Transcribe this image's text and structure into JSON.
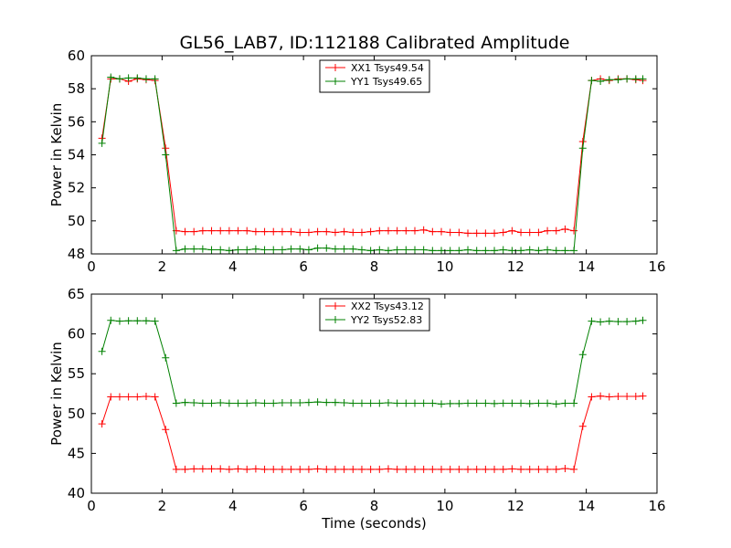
{
  "title": "GL56_LAB7, ID:112188 Calibrated Amplitude",
  "chart_data": [
    {
      "type": "line",
      "title": "GL56_LAB7, ID:112188 Calibrated Amplitude",
      "xlabel": "",
      "ylabel": "Power in Kelvin",
      "xlim": [
        0,
        16
      ],
      "ylim": [
        48,
        60
      ],
      "xticks": [
        0,
        2,
        4,
        6,
        8,
        10,
        12,
        14,
        16
      ],
      "yticks": [
        48,
        50,
        52,
        54,
        56,
        58,
        60
      ],
      "legend_position": "top-center",
      "grid": false,
      "x": [
        0.3,
        0.55,
        0.8,
        1.05,
        1.3,
        1.55,
        1.8,
        2.1,
        2.4,
        2.65,
        2.9,
        3.15,
        3.4,
        3.65,
        3.9,
        4.15,
        4.4,
        4.65,
        4.9,
        5.15,
        5.4,
        5.65,
        5.9,
        6.15,
        6.4,
        6.65,
        6.9,
        7.15,
        7.4,
        7.65,
        7.9,
        8.15,
        8.4,
        8.65,
        8.9,
        9.15,
        9.4,
        9.65,
        9.9,
        10.15,
        10.4,
        10.65,
        10.9,
        11.15,
        11.4,
        11.65,
        11.9,
        12.15,
        12.4,
        12.65,
        12.9,
        13.15,
        13.4,
        13.65,
        13.9,
        14.15,
        14.4,
        14.65,
        14.9,
        15.15,
        15.4,
        15.6
      ],
      "series": [
        {
          "name": "XX1 Tsys49.54",
          "color": "#ff0000",
          "values": [
            55.0,
            58.6,
            58.6,
            58.45,
            58.6,
            58.55,
            58.5,
            54.4,
            49.4,
            49.35,
            49.35,
            49.4,
            49.4,
            49.4,
            49.4,
            49.4,
            49.4,
            49.35,
            49.35,
            49.35,
            49.35,
            49.35,
            49.3,
            49.3,
            49.35,
            49.35,
            49.3,
            49.35,
            49.3,
            49.3,
            49.35,
            49.4,
            49.4,
            49.4,
            49.4,
            49.4,
            49.45,
            49.35,
            49.35,
            49.3,
            49.3,
            49.25,
            49.25,
            49.25,
            49.25,
            49.3,
            49.4,
            49.3,
            49.3,
            49.3,
            49.4,
            49.4,
            49.5,
            49.4,
            54.8,
            58.5,
            58.6,
            58.5,
            58.6,
            58.6,
            58.55,
            58.5
          ]
        },
        {
          "name": "YY1 Tsys49.65",
          "color": "#008000",
          "values": [
            54.7,
            58.7,
            58.6,
            58.65,
            58.65,
            58.6,
            58.6,
            54.0,
            48.2,
            48.3,
            48.3,
            48.3,
            48.25,
            48.25,
            48.2,
            48.25,
            48.25,
            48.3,
            48.25,
            48.25,
            48.25,
            48.3,
            48.3,
            48.25,
            48.35,
            48.35,
            48.3,
            48.3,
            48.3,
            48.25,
            48.2,
            48.25,
            48.2,
            48.25,
            48.25,
            48.25,
            48.25,
            48.2,
            48.2,
            48.2,
            48.2,
            48.25,
            48.2,
            48.2,
            48.2,
            48.25,
            48.2,
            48.2,
            48.25,
            48.2,
            48.25,
            48.2,
            48.2,
            48.2,
            54.4,
            58.5,
            58.45,
            58.55,
            58.55,
            58.6,
            58.6,
            58.6
          ]
        }
      ]
    },
    {
      "type": "line",
      "title": "",
      "xlabel": "Time (seconds)",
      "ylabel": "Power in Kelvin",
      "xlim": [
        0,
        16
      ],
      "ylim": [
        40,
        65
      ],
      "xticks": [
        0,
        2,
        4,
        6,
        8,
        10,
        12,
        14,
        16
      ],
      "yticks": [
        40,
        45,
        50,
        55,
        60,
        65
      ],
      "legend_position": "top-center",
      "grid": false,
      "x": [
        0.3,
        0.55,
        0.8,
        1.05,
        1.3,
        1.55,
        1.8,
        2.1,
        2.4,
        2.65,
        2.9,
        3.15,
        3.4,
        3.65,
        3.9,
        4.15,
        4.4,
        4.65,
        4.9,
        5.15,
        5.4,
        5.65,
        5.9,
        6.15,
        6.4,
        6.65,
        6.9,
        7.15,
        7.4,
        7.65,
        7.9,
        8.15,
        8.4,
        8.65,
        8.9,
        9.15,
        9.4,
        9.65,
        9.9,
        10.15,
        10.4,
        10.65,
        10.9,
        11.15,
        11.4,
        11.65,
        11.9,
        12.15,
        12.4,
        12.65,
        12.9,
        13.15,
        13.4,
        13.65,
        13.9,
        14.15,
        14.4,
        14.65,
        14.9,
        15.15,
        15.4,
        15.6
      ],
      "series": [
        {
          "name": "XX2 Tsys43.12",
          "color": "#ff0000",
          "values": [
            48.7,
            52.1,
            52.1,
            52.1,
            52.1,
            52.15,
            52.1,
            48.0,
            43.0,
            43.0,
            43.05,
            43.05,
            43.05,
            43.05,
            43.0,
            43.05,
            43.0,
            43.05,
            43.0,
            43.0,
            43.0,
            43.0,
            43.0,
            43.0,
            43.05,
            43.0,
            43.0,
            43.0,
            43.0,
            43.0,
            43.0,
            43.0,
            43.05,
            43.0,
            43.0,
            43.0,
            43.0,
            43.0,
            43.0,
            43.0,
            43.0,
            43.0,
            43.0,
            43.0,
            43.0,
            43.0,
            43.05,
            43.0,
            43.0,
            43.0,
            43.0,
            43.0,
            43.1,
            43.0,
            48.4,
            52.1,
            52.2,
            52.1,
            52.15,
            52.15,
            52.15,
            52.2
          ]
        },
        {
          "name": "YY2 Tsys52.83",
          "color": "#008000",
          "values": [
            57.8,
            61.7,
            61.6,
            61.65,
            61.65,
            61.65,
            61.6,
            57.0,
            51.3,
            51.4,
            51.35,
            51.3,
            51.3,
            51.35,
            51.3,
            51.3,
            51.3,
            51.35,
            51.3,
            51.3,
            51.35,
            51.35,
            51.35,
            51.4,
            51.45,
            51.4,
            51.4,
            51.35,
            51.3,
            51.3,
            51.3,
            51.3,
            51.35,
            51.3,
            51.3,
            51.3,
            51.3,
            51.3,
            51.2,
            51.25,
            51.25,
            51.3,
            51.3,
            51.3,
            51.25,
            51.3,
            51.3,
            51.3,
            51.25,
            51.3,
            51.3,
            51.2,
            51.3,
            51.3,
            57.4,
            61.6,
            61.5,
            61.6,
            61.55,
            61.55,
            61.6,
            61.7
          ]
        }
      ]
    }
  ]
}
